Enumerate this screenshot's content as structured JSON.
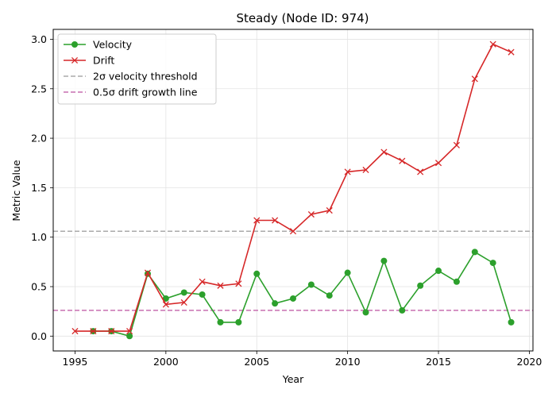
{
  "chart_data": {
    "type": "line",
    "title": "Steady (Node ID: 974)",
    "xlabel": "Year",
    "ylabel": "Metric Value",
    "xlim": [
      1993.8,
      2020.2
    ],
    "ylim": [
      -0.15,
      3.1
    ],
    "xticks": [
      1995,
      2000,
      2005,
      2010,
      2015,
      2020
    ],
    "yticks": [
      0.0,
      0.5,
      1.0,
      1.5,
      2.0,
      2.5,
      3.0
    ],
    "grid": true,
    "legend_position": "top-left",
    "series": [
      {
        "name": "Velocity",
        "color": "#2ca02c",
        "marker": "circle",
        "x": [
          1996,
          1997,
          1998,
          1999,
          2000,
          2001,
          2002,
          2003,
          2004,
          2005,
          2006,
          2007,
          2008,
          2009,
          2010,
          2011,
          2012,
          2013,
          2014,
          2015,
          2016,
          2017,
          2018,
          2019
        ],
        "y": [
          0.05,
          0.05,
          0.0,
          0.63,
          0.38,
          0.44,
          0.42,
          0.14,
          0.14,
          0.63,
          0.33,
          0.38,
          0.52,
          0.41,
          0.64,
          0.24,
          0.76,
          0.26,
          0.51,
          0.66,
          0.55,
          0.85,
          0.74,
          0.14
        ]
      },
      {
        "name": "Drift",
        "color": "#d62728",
        "marker": "x",
        "x": [
          1995,
          1996,
          1997,
          1998,
          1999,
          2000,
          2001,
          2002,
          2003,
          2004,
          2005,
          2006,
          2007,
          2008,
          2009,
          2010,
          2011,
          2012,
          2013,
          2014,
          2015,
          2016,
          2017,
          2018,
          2019
        ],
        "y": [
          0.05,
          0.05,
          0.05,
          0.05,
          0.64,
          0.32,
          0.34,
          0.55,
          0.51,
          0.53,
          1.17,
          1.17,
          1.06,
          1.23,
          1.27,
          1.66,
          1.68,
          1.86,
          1.77,
          1.66,
          1.75,
          1.93,
          2.6,
          2.95,
          2.87
        ]
      }
    ],
    "reference_lines": [
      {
        "name": "2σ velocity threshold",
        "y": 1.06,
        "color": "#aaaaaa",
        "style": "dashed"
      },
      {
        "name": "0.5σ drift growth line",
        "y": 0.26,
        "color": "#c76fb0",
        "style": "dashed"
      }
    ]
  }
}
